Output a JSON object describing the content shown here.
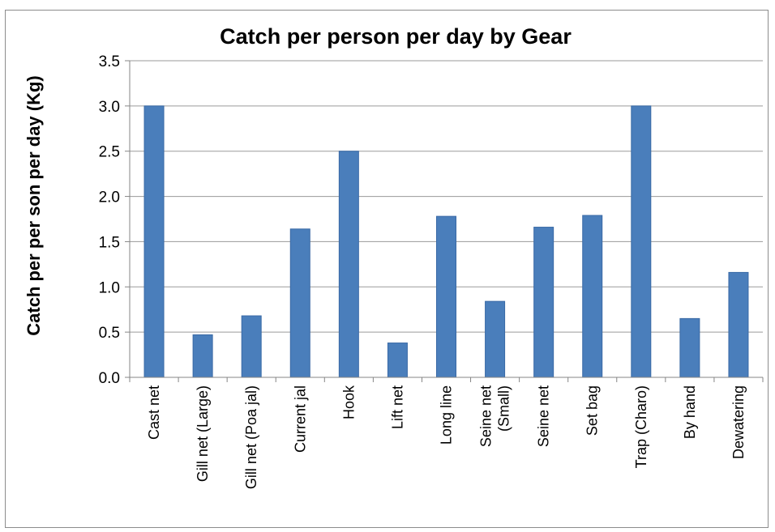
{
  "chart_data": {
    "type": "bar",
    "title": "Catch per person per day by Gear",
    "xlabel": "",
    "ylabel": "Catch per per son per day (Kg)",
    "categories": [
      [
        "Cast net"
      ],
      [
        "Gill net (Large)"
      ],
      [
        "Gill net (Poa jal)"
      ],
      [
        "Current jal"
      ],
      [
        "Hook"
      ],
      [
        "Lift net"
      ],
      [
        "Long line"
      ],
      [
        "Seine net",
        "(Small)"
      ],
      [
        "Seine net"
      ],
      [
        "Set bag"
      ],
      [
        "Trap (Charo)"
      ],
      [
        "By hand"
      ],
      [
        "Dewatering"
      ]
    ],
    "values": [
      3.0,
      0.47,
      0.68,
      1.64,
      2.5,
      0.38,
      1.78,
      0.84,
      1.66,
      1.79,
      3.0,
      0.65,
      1.16
    ],
    "ylim": [
      0,
      3.5
    ],
    "yticks": [
      "0.0",
      "0.5",
      "1.0",
      "1.5",
      "2.0",
      "2.5",
      "3.0",
      "3.5"
    ],
    "grid": true,
    "legend": "none",
    "colors": {
      "bar": "#4a7ebb",
      "bar_edge": "#3a6aa6",
      "grid": "#9a9a9a",
      "axis": "#868686"
    }
  }
}
